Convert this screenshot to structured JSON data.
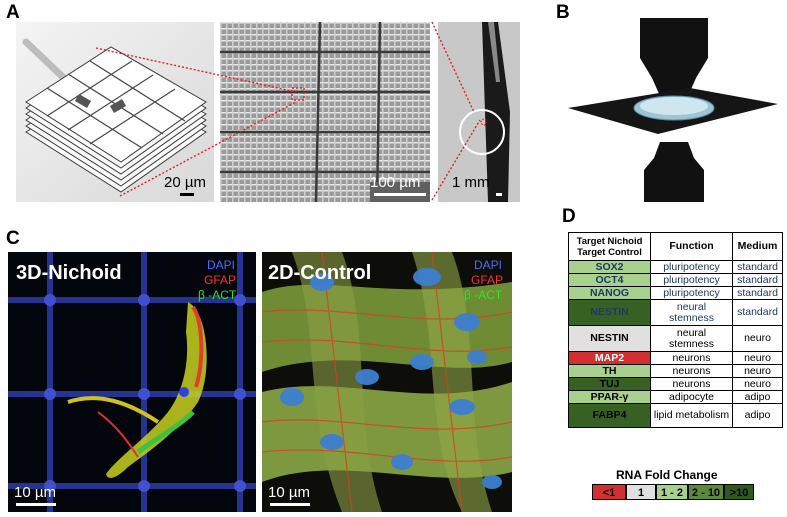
{
  "panels": {
    "a": {
      "letter": "A",
      "scale1": "20 µm",
      "scale2": "100 µm",
      "scale3": "1 mm"
    },
    "b": {
      "letter": "B"
    },
    "c": {
      "letter": "C",
      "left": {
        "title": "3D-Nichoid",
        "legend": [
          "DAPI",
          "GFAP",
          "β -ACT"
        ],
        "scale": "10 µm"
      },
      "right": {
        "title": "2D-Control",
        "legend": [
          "DAPI",
          "GFAP",
          "β -ACT"
        ],
        "scale": "10 µm"
      }
    },
    "d": {
      "letter": "D",
      "header": {
        "col1_line1": "Target Nichoid",
        "col1_line2": "Target Control",
        "col2": "Function",
        "col3": "Medium"
      },
      "rows": [
        {
          "gene": "SOX2",
          "function": "pluripotency",
          "medium": "standard",
          "color": "#a9d18e",
          "gene_color": "#1f3864",
          "text_color": "#1f3864"
        },
        {
          "gene": "OCT4",
          "function": "pluripotency",
          "medium": "standard",
          "color": "#a9d18e",
          "gene_color": "#1f3864",
          "text_color": "#1f3864"
        },
        {
          "gene": "NANOG",
          "function": "pluripotency",
          "medium": "standard",
          "color": "#a9d18e",
          "gene_color": "#1f3864",
          "text_color": "#1f3864"
        },
        {
          "gene": "NESTIN",
          "function": "neural stemness",
          "medium": "standard",
          "color": "#376123",
          "gene_color": "#1f3864",
          "text_color": "#1f3864"
        },
        {
          "gene": "NESTIN",
          "function": "neural stemness",
          "medium": "neuro",
          "color": "#e0e0e0",
          "gene_color": "#000000",
          "text_color": "#000000"
        },
        {
          "gene": "MAP2",
          "function": "neurons",
          "medium": "neuro",
          "color": "#d32f2f",
          "gene_color": "#ffffff",
          "text_color": "#000000"
        },
        {
          "gene": "TH",
          "function": "neurons",
          "medium": "neuro",
          "color": "#a9d18e",
          "gene_color": "#000000",
          "text_color": "#000000"
        },
        {
          "gene": "TUJ",
          "function": "neurons",
          "medium": "neuro",
          "color": "#376123",
          "gene_color": "#000000",
          "text_color": "#000000"
        },
        {
          "gene": "PPAR-γ",
          "function": "adipocyte",
          "medium": "adipo",
          "color": "#a9d18e",
          "gene_color": "#000000",
          "text_color": "#000000"
        },
        {
          "gene": "FABP4",
          "function": "lipid metabolism",
          "medium": "adipo",
          "color": "#376123",
          "gene_color": "#000000",
          "text_color": "#000000"
        }
      ],
      "fold_change": {
        "title": "RNA Fold Change",
        "items": [
          {
            "label": "<1",
            "color": "#d32f2f"
          },
          {
            "label": "1",
            "color": "#e0e0e0"
          },
          {
            "label": "1 - 2",
            "color": "#a9d18e"
          },
          {
            "label": "2 - 10",
            "color": "#5a8a3a"
          },
          {
            "label": ">10",
            "color": "#2e5a1c"
          }
        ]
      }
    }
  }
}
